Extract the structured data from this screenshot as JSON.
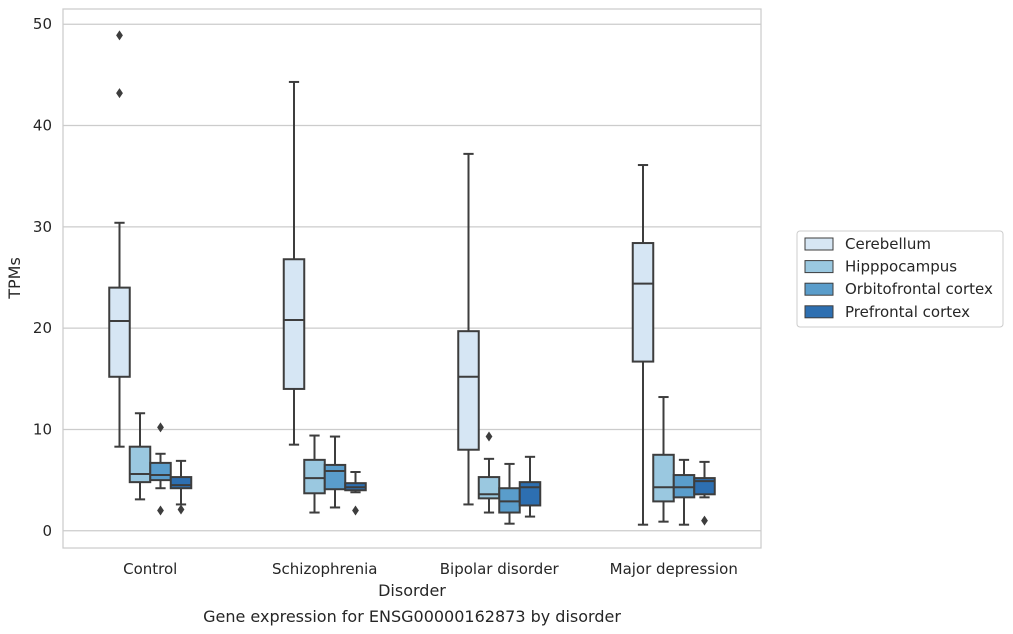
{
  "chart_data": {
    "type": "box",
    "title": "",
    "caption": "Gene expression for ENSG00000162873 by disorder",
    "xlabel": "Disorder",
    "ylabel": "TPMs",
    "ylim": [
      -1.7,
      51.5
    ],
    "yticks": [
      0,
      10,
      20,
      30,
      40,
      50
    ],
    "grid": "horizontal",
    "legend_position": "right",
    "categories": [
      "Control",
      "Schizophrenia",
      "Bipolar disorder",
      "Major depression"
    ],
    "series": [
      {
        "name": "Cerebellum",
        "color": "#d6e6f4",
        "boxes": [
          {
            "whisker_low": 8.3,
            "q1": 15.2,
            "median": 20.7,
            "q3": 24.0,
            "whisker_high": 30.4,
            "outliers": [
              43.2,
              48.9
            ]
          },
          {
            "whisker_low": 8.5,
            "q1": 14.0,
            "median": 20.8,
            "q3": 26.8,
            "whisker_high": 44.3,
            "outliers": []
          },
          {
            "whisker_low": 2.6,
            "q1": 8.0,
            "median": 15.2,
            "q3": 19.7,
            "whisker_high": 37.2,
            "outliers": []
          },
          {
            "whisker_low": 0.6,
            "q1": 16.7,
            "median": 24.4,
            "q3": 28.4,
            "whisker_high": 36.1,
            "outliers": []
          }
        ]
      },
      {
        "name": "Hipppocampus",
        "color": "#9ac8e0",
        "boxes": [
          {
            "whisker_low": 3.1,
            "q1": 4.8,
            "median": 5.6,
            "q3": 8.3,
            "whisker_high": 11.6,
            "outliers": []
          },
          {
            "whisker_low": 1.8,
            "q1": 3.7,
            "median": 5.2,
            "q3": 7.0,
            "whisker_high": 9.4,
            "outliers": []
          },
          {
            "whisker_low": 1.8,
            "q1": 3.2,
            "median": 3.6,
            "q3": 5.3,
            "whisker_high": 7.1,
            "outliers": [
              9.3
            ]
          },
          {
            "whisker_low": 0.9,
            "q1": 2.9,
            "median": 4.3,
            "q3": 7.5,
            "whisker_high": 13.2,
            "outliers": []
          }
        ]
      },
      {
        "name": "Orbitofrontal cortex",
        "color": "#5a9dcb",
        "boxes": [
          {
            "whisker_low": 4.2,
            "q1": 5.0,
            "median": 5.5,
            "q3": 6.7,
            "whisker_high": 7.6,
            "outliers": [
              2.0,
              10.2
            ]
          },
          {
            "whisker_low": 2.3,
            "q1": 4.1,
            "median": 5.9,
            "q3": 6.5,
            "whisker_high": 9.3,
            "outliers": []
          },
          {
            "whisker_low": 0.7,
            "q1": 1.8,
            "median": 2.9,
            "q3": 4.2,
            "whisker_high": 6.6,
            "outliers": []
          },
          {
            "whisker_low": 0.6,
            "q1": 3.3,
            "median": 4.3,
            "q3": 5.5,
            "whisker_high": 7.0,
            "outliers": []
          }
        ]
      },
      {
        "name": "Prefrontal cortex",
        "color": "#2d6fb1",
        "boxes": [
          {
            "whisker_low": 2.6,
            "q1": 4.2,
            "median": 4.5,
            "q3": 5.3,
            "whisker_high": 6.9,
            "outliers": [
              2.1
            ]
          },
          {
            "whisker_low": 3.8,
            "q1": 4.0,
            "median": 4.3,
            "q3": 4.7,
            "whisker_high": 5.8,
            "outliers": [
              2.0
            ]
          },
          {
            "whisker_low": 1.4,
            "q1": 2.5,
            "median": 4.3,
            "q3": 4.8,
            "whisker_high": 7.3,
            "outliers": []
          },
          {
            "whisker_low": 3.3,
            "q1": 3.6,
            "median": 4.9,
            "q3": 5.2,
            "whisker_high": 6.8,
            "outliers": [
              1.0
            ]
          }
        ]
      }
    ]
  }
}
